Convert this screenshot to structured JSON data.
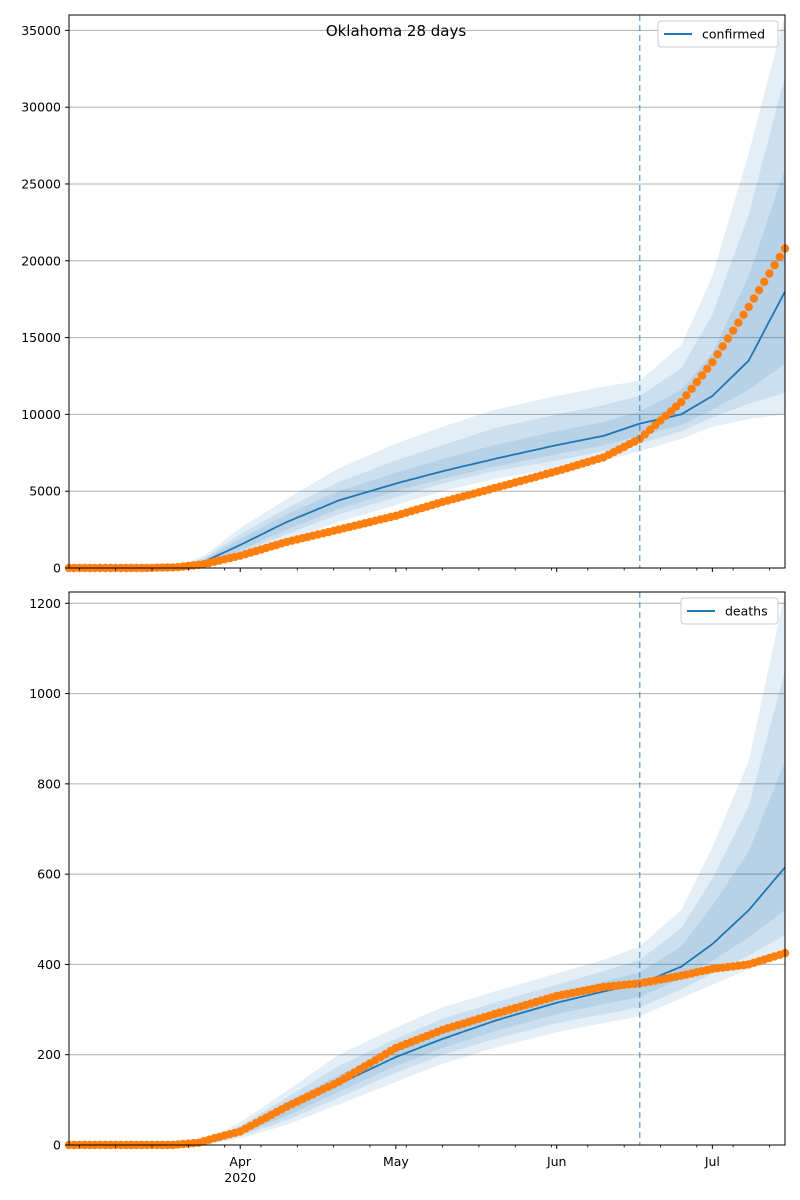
{
  "title": "Oklahoma 28 days",
  "x_axis": {
    "start": "2020-02-28",
    "end": "2020-07-15",
    "major_ticks": [
      {
        "date": "2020-04-01",
        "label": "Apr",
        "sublabel": "2020"
      },
      {
        "date": "2020-05-01",
        "label": "May"
      },
      {
        "date": "2020-06-01",
        "label": "Jun"
      },
      {
        "date": "2020-07-01",
        "label": "Jul"
      }
    ],
    "minor_ticks": [
      "2020-03-01",
      "2020-03-08",
      "2020-03-15",
      "2020-03-22",
      "2020-03-29",
      "2020-04-05",
      "2020-04-12",
      "2020-04-19",
      "2020-04-26",
      "2020-05-03",
      "2020-05-10",
      "2020-05-17",
      "2020-05-24",
      "2020-05-31",
      "2020-06-07",
      "2020-06-14",
      "2020-06-21",
      "2020-06-28",
      "2020-07-05",
      "2020-07-12"
    ],
    "forecast_start": "2020-06-17"
  },
  "colors": {
    "model_line": "#1f77b4",
    "band": "#1f77b4",
    "observed": "#ff7f0e",
    "grid": "#b0b0b0"
  },
  "chart_data": [
    {
      "type": "line",
      "legend": "confirmed",
      "legend_position": "top-right",
      "title": "Oklahoma 28 days",
      "ylim": [
        0,
        36000
      ],
      "yticks": [
        0,
        5000,
        10000,
        15000,
        20000,
        25000,
        30000,
        35000
      ],
      "grid": "horizontal",
      "forecast_start": "2020-06-17",
      "model": {
        "x": [
          "2020-02-28",
          "2020-03-15",
          "2020-03-20",
          "2020-03-25",
          "2020-04-01",
          "2020-04-10",
          "2020-04-20",
          "2020-05-01",
          "2020-05-10",
          "2020-05-20",
          "2020-06-01",
          "2020-06-10",
          "2020-06-17",
          "2020-06-25",
          "2020-07-01",
          "2020-07-08",
          "2020-07-15"
        ],
        "y": [
          0,
          0,
          0,
          400,
          1500,
          3000,
          4400,
          5500,
          6300,
          7100,
          8000,
          8600,
          9400,
          10000,
          11200,
          13500,
          18000
        ]
      },
      "bands": [
        {
          "x": [
            "2020-02-28",
            "2020-03-15",
            "2020-03-20",
            "2020-03-25",
            "2020-04-01",
            "2020-04-10",
            "2020-04-20",
            "2020-05-01",
            "2020-05-10",
            "2020-05-20",
            "2020-06-01",
            "2020-06-10",
            "2020-06-17",
            "2020-06-25",
            "2020-07-01",
            "2020-07-08",
            "2020-07-15"
          ],
          "lower": [
            0,
            0,
            0,
            150,
            800,
            1800,
            3000,
            4100,
            5000,
            5800,
            6500,
            7000,
            7600,
            8400,
            9200,
            9700,
            10000
          ],
          "upper": [
            0,
            0,
            100,
            800,
            2600,
            4500,
            6500,
            8100,
            9200,
            10300,
            11200,
            11800,
            12200,
            14500,
            19000,
            27000,
            36000
          ]
        },
        {
          "x": [
            "2020-02-28",
            "2020-03-15",
            "2020-03-20",
            "2020-03-25",
            "2020-04-01",
            "2020-04-10",
            "2020-04-20",
            "2020-05-01",
            "2020-05-10",
            "2020-05-20",
            "2020-06-01",
            "2020-06-10",
            "2020-06-17",
            "2020-06-25",
            "2020-07-01",
            "2020-07-08",
            "2020-07-15"
          ],
          "lower": [
            0,
            0,
            0,
            200,
            1000,
            2200,
            3500,
            4600,
            5500,
            6300,
            7000,
            7600,
            8100,
            8900,
            9800,
            10700,
            11400
          ],
          "upper": [
            0,
            0,
            60,
            650,
            2200,
            3900,
            5600,
            7000,
            8000,
            9100,
            10000,
            10600,
            11200,
            13000,
            16500,
            23000,
            32000
          ]
        },
        {
          "x": [
            "2020-02-28",
            "2020-03-15",
            "2020-03-20",
            "2020-03-25",
            "2020-04-01",
            "2020-04-10",
            "2020-04-20",
            "2020-05-01",
            "2020-05-10",
            "2020-05-20",
            "2020-06-01",
            "2020-06-10",
            "2020-06-17",
            "2020-06-25",
            "2020-07-01",
            "2020-07-08",
            "2020-07-15"
          ],
          "lower": [
            0,
            0,
            0,
            260,
            1150,
            2500,
            3850,
            5000,
            5800,
            6600,
            7400,
            8000,
            8600,
            9300,
            10300,
            11600,
            13300
          ],
          "upper": [
            0,
            0,
            40,
            550,
            1900,
            3500,
            5000,
            6200,
            7100,
            8000,
            8900,
            9500,
            10200,
            11600,
            14000,
            19000,
            26000
          ]
        }
      ],
      "observed": {
        "start": "2020-02-28",
        "anchors": [
          [
            "2020-02-28",
            0
          ],
          [
            "2020-03-14",
            0
          ],
          [
            "2020-03-20",
            50
          ],
          [
            "2020-03-25",
            250
          ],
          [
            "2020-04-01",
            800
          ],
          [
            "2020-04-10",
            1700
          ],
          [
            "2020-04-20",
            2500
          ],
          [
            "2020-05-01",
            3400
          ],
          [
            "2020-05-10",
            4300
          ],
          [
            "2020-05-20",
            5200
          ],
          [
            "2020-06-01",
            6300
          ],
          [
            "2020-06-10",
            7200
          ],
          [
            "2020-06-17",
            8400
          ],
          [
            "2020-06-25",
            10800
          ],
          [
            "2020-07-01",
            13400
          ],
          [
            "2020-07-08",
            17000
          ],
          [
            "2020-07-15",
            20800
          ]
        ]
      }
    },
    {
      "type": "line",
      "legend": "deaths",
      "legend_position": "top-right",
      "ylim": [
        0,
        1225
      ],
      "yticks": [
        0,
        200,
        400,
        600,
        800,
        1000,
        1200
      ],
      "grid": "horizontal",
      "forecast_start": "2020-06-17",
      "model": {
        "x": [
          "2020-02-28",
          "2020-03-20",
          "2020-03-25",
          "2020-04-01",
          "2020-04-10",
          "2020-04-20",
          "2020-05-01",
          "2020-05-10",
          "2020-05-20",
          "2020-06-01",
          "2020-06-10",
          "2020-06-17",
          "2020-06-25",
          "2020-07-01",
          "2020-07-08",
          "2020-07-15"
        ],
        "y": [
          0,
          0,
          3,
          30,
          80,
          135,
          195,
          235,
          275,
          315,
          340,
          357,
          395,
          445,
          520,
          615
        ]
      },
      "bands": [
        {
          "x": [
            "2020-02-28",
            "2020-03-20",
            "2020-03-25",
            "2020-04-01",
            "2020-04-10",
            "2020-04-20",
            "2020-05-01",
            "2020-05-10",
            "2020-05-20",
            "2020-06-01",
            "2020-06-10",
            "2020-06-17",
            "2020-06-25",
            "2020-07-01",
            "2020-07-08",
            "2020-07-15"
          ],
          "lower": [
            0,
            0,
            0,
            15,
            45,
            90,
            140,
            180,
            215,
            250,
            270,
            285,
            325,
            355,
            390,
            420
          ],
          "upper": [
            0,
            0,
            10,
            50,
            120,
            200,
            260,
            305,
            340,
            380,
            410,
            440,
            520,
            660,
            850,
            1225
          ]
        },
        {
          "x": [
            "2020-02-28",
            "2020-03-20",
            "2020-03-25",
            "2020-04-01",
            "2020-04-10",
            "2020-04-20",
            "2020-05-01",
            "2020-05-10",
            "2020-05-20",
            "2020-06-01",
            "2020-06-10",
            "2020-06-17",
            "2020-06-25",
            "2020-07-01",
            "2020-07-08",
            "2020-07-15"
          ],
          "lower": [
            0,
            0,
            1,
            20,
            55,
            105,
            160,
            200,
            235,
            270,
            290,
            305,
            345,
            380,
            420,
            465
          ],
          "upper": [
            0,
            0,
            7,
            42,
            105,
            175,
            235,
            280,
            315,
            355,
            385,
            410,
            480,
            590,
            750,
            1050
          ]
        },
        {
          "x": [
            "2020-02-28",
            "2020-03-20",
            "2020-03-25",
            "2020-04-01",
            "2020-04-10",
            "2020-04-20",
            "2020-05-01",
            "2020-05-10",
            "2020-05-20",
            "2020-06-01",
            "2020-06-10",
            "2020-06-17",
            "2020-06-25",
            "2020-07-01",
            "2020-07-08",
            "2020-07-15"
          ],
          "lower": [
            0,
            0,
            2,
            24,
            65,
            118,
            175,
            215,
            252,
            290,
            312,
            328,
            368,
            408,
            460,
            520
          ],
          "upper": [
            0,
            0,
            5,
            36,
            95,
            155,
            215,
            255,
            295,
            335,
            362,
            382,
            440,
            530,
            650,
            850
          ]
        }
      ],
      "observed": {
        "start": "2020-02-28",
        "anchors": [
          [
            "2020-02-28",
            0
          ],
          [
            "2020-03-19",
            0
          ],
          [
            "2020-03-24",
            5
          ],
          [
            "2020-03-27",
            15
          ],
          [
            "2020-04-01",
            30
          ],
          [
            "2020-04-10",
            85
          ],
          [
            "2020-04-20",
            140
          ],
          [
            "2020-05-01",
            215
          ],
          [
            "2020-05-10",
            255
          ],
          [
            "2020-05-20",
            290
          ],
          [
            "2020-06-01",
            330
          ],
          [
            "2020-06-10",
            350
          ],
          [
            "2020-06-17",
            358
          ],
          [
            "2020-06-25",
            375
          ],
          [
            "2020-07-01",
            390
          ],
          [
            "2020-07-08",
            400
          ],
          [
            "2020-07-15",
            425
          ]
        ]
      }
    }
  ]
}
